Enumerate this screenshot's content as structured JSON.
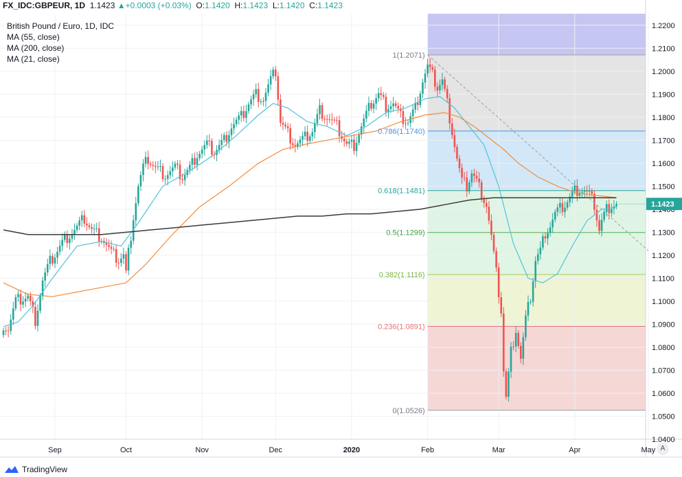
{
  "header": {
    "symbol": "FX_IDC:GBPEUR, 1D",
    "last": "1.1423",
    "change": "+0.0003 (+0.03%)",
    "open_label": "O:",
    "open": "1.1420",
    "high_label": "H:",
    "high": "1.1423",
    "low_label": "L:",
    "low": "1.1420",
    "close_label": "C:",
    "close": "1.1423"
  },
  "legend": {
    "title": "British Pound / Euro, 1D, IDC",
    "ma1": "MA (55, close)",
    "ma2": "MA (200, close)",
    "ma3": "MA (21, close)"
  },
  "auto_label": "A",
  "brand": "TradingView",
  "colors": {
    "up": "#26a69a",
    "down": "#ef5350",
    "ma21": "#4fc3d8",
    "ma55": "#f28c3c",
    "ma200": "#3a3a3a"
  },
  "chart_data": {
    "type": "candlestick",
    "title": "British Pound / Euro, 1D, IDC",
    "y_axis": {
      "ylim": [
        1.04,
        1.225
      ],
      "ticks": [
        "1.2200",
        "1.2100",
        "1.2000",
        "1.1900",
        "1.1800",
        "1.1700",
        "1.1600",
        "1.1500",
        "1.1400",
        "1.1300",
        "1.1200",
        "1.1100",
        "1.1000",
        "1.0900",
        "1.0800",
        "1.0700",
        "1.0600",
        "1.0500",
        "1.0400"
      ],
      "last_price_label": "1.1423"
    },
    "x_axis": {
      "tick_labels": [
        "Sep",
        "Oct",
        "Nov",
        "Dec",
        "2020",
        "Feb",
        "Mar",
        "Apr",
        "May"
      ],
      "tick_days": [
        21,
        50,
        81,
        111,
        142,
        173,
        202,
        233,
        263
      ]
    },
    "price_anchors": [
      [
        0,
        1.09
      ],
      [
        2,
        1.088
      ],
      [
        5,
        1.1
      ],
      [
        10,
        1.102
      ],
      [
        13,
        1.092
      ],
      [
        16,
        1.109
      ],
      [
        19,
        1.117
      ],
      [
        22,
        1.122
      ],
      [
        25,
        1.127
      ],
      [
        30,
        1.132
      ],
      [
        33,
        1.136
      ],
      [
        36,
        1.131
      ],
      [
        40,
        1.128
      ],
      [
        44,
        1.121
      ],
      [
        47,
        1.118
      ],
      [
        49,
        1.12
      ],
      [
        50,
        1.112
      ],
      [
        51,
        1.121
      ],
      [
        53,
        1.137
      ],
      [
        55,
        1.15
      ],
      [
        57,
        1.158
      ],
      [
        59,
        1.162
      ],
      [
        62,
        1.158
      ],
      [
        66,
        1.155
      ],
      [
        70,
        1.158
      ],
      [
        73,
        1.154
      ],
      [
        76,
        1.158
      ],
      [
        79,
        1.164
      ],
      [
        83,
        1.168
      ],
      [
        86,
        1.165
      ],
      [
        90,
        1.17
      ],
      [
        93,
        1.176
      ],
      [
        97,
        1.18
      ],
      [
        100,
        1.186
      ],
      [
        103,
        1.19
      ],
      [
        106,
        1.188
      ],
      [
        109,
        1.196
      ],
      [
        111,
        1.2
      ],
      [
        113,
        1.178
      ],
      [
        116,
        1.173
      ],
      [
        119,
        1.168
      ],
      [
        122,
        1.17
      ],
      [
        126,
        1.174
      ],
      [
        129,
        1.183
      ],
      [
        132,
        1.18
      ],
      [
        136,
        1.176
      ],
      [
        140,
        1.168
      ],
      [
        143,
        1.168
      ],
      [
        146,
        1.176
      ],
      [
        150,
        1.186
      ],
      [
        153,
        1.19
      ],
      [
        156,
        1.185
      ],
      [
        159,
        1.186
      ],
      [
        162,
        1.18
      ],
      [
        165,
        1.178
      ],
      [
        168,
        1.184
      ],
      [
        171,
        1.196
      ],
      [
        173,
        1.202
      ],
      [
        175,
        1.198
      ],
      [
        177,
        1.193
      ],
      [
        179,
        1.196
      ],
      [
        181,
        1.186
      ],
      [
        183,
        1.174
      ],
      [
        185,
        1.162
      ],
      [
        187,
        1.152
      ],
      [
        189,
        1.15
      ],
      [
        191,
        1.156
      ],
      [
        193,
        1.152
      ],
      [
        195,
        1.147
      ],
      [
        197,
        1.142
      ],
      [
        199,
        1.128
      ],
      [
        201,
        1.112
      ],
      [
        203,
        1.096
      ],
      [
        204,
        1.07
      ],
      [
        205,
        1.058
      ],
      [
        207,
        1.078
      ],
      [
        209,
        1.088
      ],
      [
        211,
        1.075
      ],
      [
        213,
        1.092
      ],
      [
        215,
        1.102
      ],
      [
        217,
        1.118
      ],
      [
        219,
        1.122
      ],
      [
        221,
        1.13
      ],
      [
        223,
        1.133
      ],
      [
        225,
        1.138
      ],
      [
        227,
        1.14
      ],
      [
        229,
        1.142
      ],
      [
        231,
        1.145
      ],
      [
        233,
        1.148
      ],
      [
        235,
        1.149
      ],
      [
        237,
        1.148
      ],
      [
        239,
        1.146
      ],
      [
        241,
        1.142
      ],
      [
        243,
        1.131
      ],
      [
        244,
        1.135
      ],
      [
        246,
        1.14
      ],
      [
        248,
        1.142
      ],
      [
        250,
        1.1423
      ]
    ],
    "series": [
      {
        "name": "MA (21, close)",
        "points": [
          [
            0,
            1.089
          ],
          [
            6,
            1.091
          ],
          [
            12,
            1.098
          ],
          [
            20,
            1.11
          ],
          [
            30,
            1.124
          ],
          [
            40,
            1.126
          ],
          [
            48,
            1.124
          ],
          [
            55,
            1.134
          ],
          [
            65,
            1.15
          ],
          [
            75,
            1.156
          ],
          [
            85,
            1.163
          ],
          [
            95,
            1.172
          ],
          [
            104,
            1.181
          ],
          [
            110,
            1.186
          ],
          [
            116,
            1.184
          ],
          [
            124,
            1.178
          ],
          [
            132,
            1.176
          ],
          [
            140,
            1.172
          ],
          [
            148,
            1.176
          ],
          [
            156,
            1.182
          ],
          [
            164,
            1.184
          ],
          [
            172,
            1.188
          ],
          [
            178,
            1.189
          ],
          [
            184,
            1.184
          ],
          [
            190,
            1.176
          ],
          [
            196,
            1.168
          ],
          [
            202,
            1.15
          ],
          [
            208,
            1.125
          ],
          [
            214,
            1.11
          ],
          [
            220,
            1.108
          ],
          [
            226,
            1.112
          ],
          [
            232,
            1.124
          ],
          [
            238,
            1.135
          ],
          [
            244,
            1.14
          ],
          [
            250,
            1.141
          ]
        ]
      },
      {
        "name": "MA (55, close)",
        "points": [
          [
            0,
            1.108
          ],
          [
            10,
            1.103
          ],
          [
            20,
            1.102
          ],
          [
            30,
            1.104
          ],
          [
            40,
            1.106
          ],
          [
            50,
            1.108
          ],
          [
            58,
            1.116
          ],
          [
            68,
            1.128
          ],
          [
            80,
            1.141
          ],
          [
            92,
            1.15
          ],
          [
            104,
            1.16
          ],
          [
            114,
            1.166
          ],
          [
            122,
            1.168
          ],
          [
            132,
            1.17
          ],
          [
            142,
            1.172
          ],
          [
            152,
            1.174
          ],
          [
            162,
            1.178
          ],
          [
            172,
            1.181
          ],
          [
            180,
            1.182
          ],
          [
            186,
            1.18
          ],
          [
            192,
            1.176
          ],
          [
            198,
            1.171
          ],
          [
            204,
            1.166
          ],
          [
            210,
            1.16
          ],
          [
            218,
            1.154
          ],
          [
            226,
            1.15
          ],
          [
            234,
            1.147
          ],
          [
            242,
            1.146
          ],
          [
            250,
            1.145
          ]
        ]
      },
      {
        "name": "MA (200, close)",
        "points": [
          [
            0,
            1.131
          ],
          [
            10,
            1.129
          ],
          [
            20,
            1.129
          ],
          [
            30,
            1.129
          ],
          [
            40,
            1.129
          ],
          [
            50,
            1.13
          ],
          [
            60,
            1.131
          ],
          [
            70,
            1.132
          ],
          [
            80,
            1.133
          ],
          [
            90,
            1.134
          ],
          [
            100,
            1.135
          ],
          [
            110,
            1.136
          ],
          [
            120,
            1.137
          ],
          [
            130,
            1.137
          ],
          [
            140,
            1.138
          ],
          [
            150,
            1.138
          ],
          [
            160,
            1.139
          ],
          [
            170,
            1.14
          ],
          [
            180,
            1.142
          ],
          [
            190,
            1.144
          ],
          [
            200,
            1.145
          ],
          [
            210,
            1.145
          ],
          [
            220,
            1.145
          ],
          [
            230,
            1.145
          ],
          [
            240,
            1.145
          ],
          [
            250,
            1.145
          ]
        ]
      }
    ],
    "trendline": {
      "from": [
        173,
        1.2071
      ],
      "to": [
        263,
        1.122
      ]
    },
    "fibonacci": {
      "start_day": 173,
      "levels": [
        {
          "label": "1(1.2071)",
          "price": 1.2071
        },
        {
          "label": "0.786(1.1740)",
          "price": 1.174
        },
        {
          "label": "0.618(1.1481)",
          "price": 1.1481
        },
        {
          "label": "0.5(1.1299)",
          "price": 1.1299
        },
        {
          "label": "0.382(1.1116)",
          "price": 1.1116
        },
        {
          "label": "0.236(1.0891)",
          "price": 1.0891
        },
        {
          "label": "0(1.0526)",
          "price": 1.0526
        }
      ],
      "above_price": 1.2255,
      "fill_colors": [
        "#c5c6f2",
        "#e4e4e4",
        "#d2e7f7",
        "#e0f4e6",
        "#e1f5e4",
        "#eef4d4",
        "#f5d7d6"
      ],
      "line_colors": [
        "#9e9e9e",
        "#4a90e2",
        "#26a69a",
        "#4caf50",
        "#9ccc65",
        "#e57373",
        "#9e9e9e"
      ],
      "text_colors": [
        "#787b86",
        "#4a90e2",
        "#26a69a",
        "#43a047",
        "#7cb342",
        "#e57373",
        "#787b86"
      ]
    },
    "grid": true,
    "legend_position": "top-left"
  }
}
